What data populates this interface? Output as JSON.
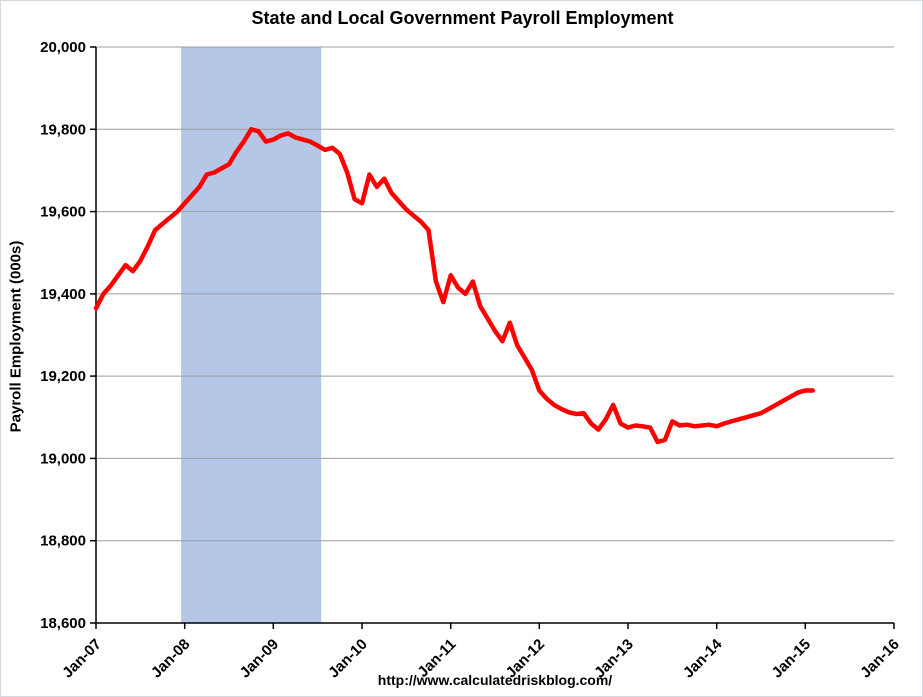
{
  "chart_data": {
    "type": "line",
    "title": "State and Local Government Payroll Employment",
    "xlabel": "",
    "ylabel": "Payroll Employment (000s)",
    "source_caption": "http://www.calculatedriskblog.com/",
    "legend": "none",
    "grid": "horizontal",
    "xlim": [
      2007.0,
      2016.0
    ],
    "ylim": [
      18600,
      20000
    ],
    "y_ticks": [
      18600,
      18800,
      19000,
      19200,
      19400,
      19600,
      19800,
      20000
    ],
    "y_tick_labels": [
      "18,600",
      "18,800",
      "19,000",
      "19,200",
      "19,400",
      "19,600",
      "19,800",
      "20,000"
    ],
    "x_ticks": [
      2007,
      2008,
      2009,
      2010,
      2011,
      2012,
      2013,
      2014,
      2015,
      2016
    ],
    "x_tick_labels": [
      "Jan-07",
      "Jan-08",
      "Jan-09",
      "Jan-10",
      "Jan-11",
      "Jan-12",
      "Jan-13",
      "Jan-14",
      "Jan-15",
      "Jan-16"
    ],
    "recession_band": {
      "x_from": 2007.96,
      "x_to": 2009.54,
      "color": "#B4C7E7"
    },
    "line_color": "#FF0000",
    "gridline_color": "#9c9c9c",
    "series": [
      {
        "name": "State and Local Government Payroll Employment (000s)",
        "color": "#FF0000",
        "x_start": 2007.0,
        "x_step": 0.0833333,
        "values": [
          19365,
          19400,
          19420,
          19445,
          19470,
          19455,
          19480,
          19515,
          19555,
          19570,
          19585,
          19600,
          19620,
          19640,
          19660,
          19690,
          19695,
          19705,
          19715,
          19745,
          19770,
          19800,
          19795,
          19770,
          19775,
          19785,
          19790,
          19780,
          19775,
          19770,
          19760,
          19750,
          19755,
          19740,
          19695,
          19630,
          19620,
          19690,
          19660,
          19680,
          19645,
          19625,
          19605,
          19590,
          19575,
          19555,
          19430,
          19380,
          19445,
          19415,
          19400,
          19430,
          19370,
          19340,
          19310,
          19285,
          19330,
          19275,
          19245,
          19215,
          19165,
          19145,
          19130,
          19120,
          19112,
          19108,
          19110,
          19085,
          19070,
          19095,
          19130,
          19085,
          19075,
          19080,
          19078,
          19075,
          19040,
          19045,
          19090,
          19080,
          19082,
          19078,
          19080,
          19082,
          19078,
          19085,
          19090,
          19095,
          19100,
          19105,
          19110,
          19120,
          19130,
          19140,
          19150,
          19160,
          19165,
          19165
        ]
      }
    ]
  }
}
